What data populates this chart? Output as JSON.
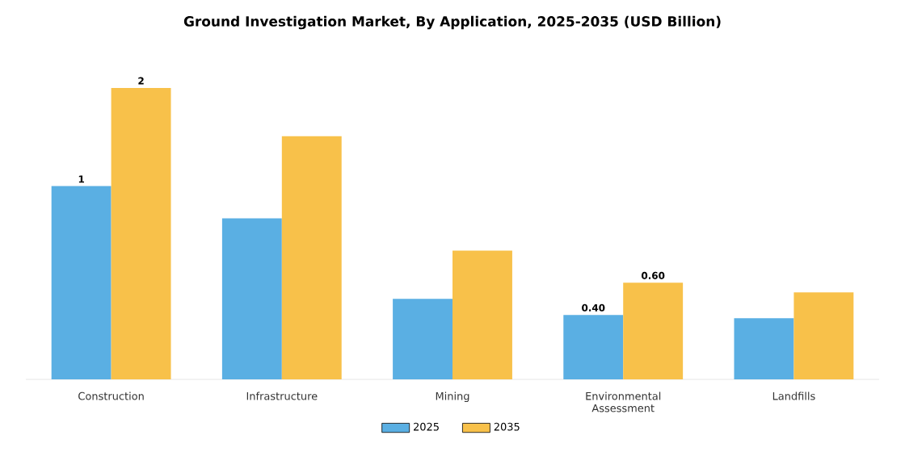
{
  "chart_data": {
    "type": "bar",
    "title": "Ground Investigation Market, By Application, 2025-2035 (USD Billion)",
    "categories": [
      "Construction",
      "Infrastructure",
      "Mining",
      "Environmental Assessment",
      "Landfills"
    ],
    "series": [
      {
        "name": "2025",
        "color": "#5aafe3",
        "values": [
          1.2,
          1.0,
          0.5,
          0.4,
          0.38
        ],
        "value_labels": [
          "1",
          null,
          null,
          "0.40",
          null
        ]
      },
      {
        "name": "2035",
        "color": "#f8c14a",
        "values": [
          1.81,
          1.51,
          0.8,
          0.6,
          0.54
        ],
        "value_labels": [
          "2",
          null,
          null,
          "0.60",
          null
        ]
      }
    ],
    "legend": "bottom",
    "tick_labels": "x"
  }
}
